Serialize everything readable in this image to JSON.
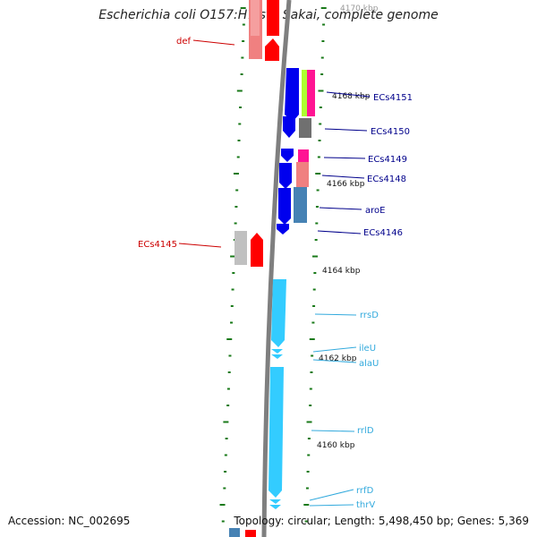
{
  "title": "Escherichia coli O157:H7 str. Sakai, complete genome",
  "accession": "Accession: NC_002695",
  "topology": "Topology: circular; Length: 5,498,450 bp; Genes: 5,369",
  "colors": {
    "backbone": "#7f7f7f",
    "tick": "#1a7a1a",
    "cds": "#0000ee",
    "rna": "#33ccff",
    "red_gene": "#ff0000",
    "pink_gene": "#f08080",
    "grey_gene": "#c8c8c8",
    "steel_gene": "#4682b4",
    "magenta_gene": "#ff1493",
    "lime_gene": "#adff2f",
    "dark_grey_gene": "#707070",
    "label_blue": "#00008b",
    "label_red": "#cc0000",
    "label_cyan": "#33aadd"
  },
  "scale_labels": [
    "4170 kbp",
    "4168 kbp",
    "4166 kbp",
    "4164 kbp",
    "4162 kbp",
    "4160 kbp"
  ],
  "gene_labels": {
    "left": [
      "def",
      "ECs4145"
    ],
    "right_cds": [
      "ECs4151",
      "ECs4150",
      "ECs4149",
      "ECs4148",
      "aroE",
      "ECs4146"
    ],
    "right_rna": [
      "rrsD",
      "ileU",
      "alaU",
      "rrlD",
      "rrfD",
      "thrV"
    ]
  }
}
